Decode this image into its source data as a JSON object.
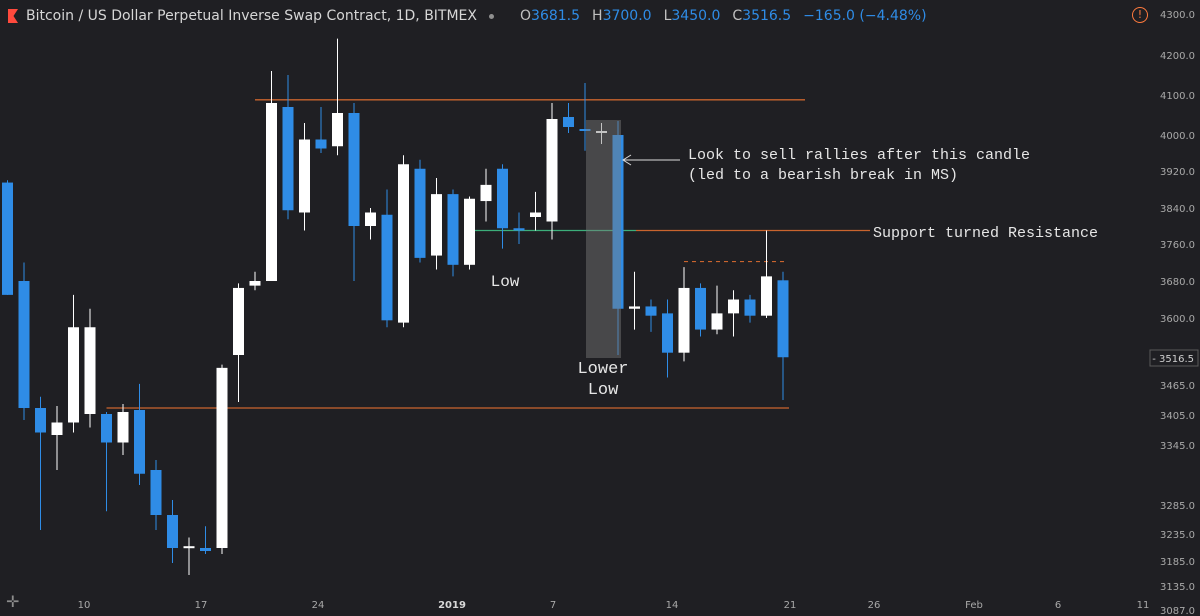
{
  "header": {
    "title": "Bitcoin / US Dollar Perpetual Inverse Swap Contract, 1D, BITMEX",
    "ohlc": [
      {
        "k": "O",
        "v": "3681.5"
      },
      {
        "k": "H",
        "v": "3700.0"
      },
      {
        "k": "L",
        "v": "3450.0"
      },
      {
        "k": "C",
        "v": "3516.5"
      },
      {
        "k": "",
        "v": "−165.0 (−4.48%)"
      }
    ]
  },
  "icons": {
    "logo": "flag-icon",
    "warning": "alert-icon",
    "crosshair": "crosshair-icon"
  },
  "colors": {
    "up": "#ffffff",
    "down": "#2f8ce6",
    "level": "#c9642e",
    "support": "#3cae7a",
    "background": "#1f1f23"
  },
  "chart_data": {
    "type": "candlestick",
    "symbol": "XBTUSD",
    "interval": "1D",
    "ylim": [
      3060,
      4310
    ],
    "y_ticks": [
      "4300.0",
      "4200.0",
      "4100.0",
      "4000.0",
      "3920.0",
      "3840.0",
      "3760.0",
      "3680.0",
      "3600.0",
      "3465.0",
      "3405.0",
      "3345.0",
      "3285.0",
      "3235.0",
      "3185.0",
      "3135.0",
      "3087.0"
    ],
    "x_ticks": [
      "10",
      "17",
      "24",
      "2019",
      "7",
      "14",
      "21",
      "26",
      "Feb",
      "6",
      "11"
    ],
    "last_price": "3516.5",
    "candles": [
      {
        "o": 3895,
        "h": 3900,
        "l": 3650,
        "c": 3650
      },
      {
        "o": 3680,
        "h": 3720,
        "l": 3400,
        "c": 3430
      },
      {
        "o": 3430,
        "h": 3455,
        "l": 3220,
        "c": 3375
      },
      {
        "o": 3370,
        "h": 3435,
        "l": 3300,
        "c": 3395
      },
      {
        "o": 3395,
        "h": 3650,
        "l": 3375,
        "c": 3580
      },
      {
        "o": 3415,
        "h": 3620,
        "l": 3385,
        "c": 3580
      },
      {
        "o": 3415,
        "h": 3420,
        "l": 3245,
        "c": 3355
      },
      {
        "o": 3355,
        "h": 3440,
        "l": 3330,
        "c": 3420
      },
      {
        "o": 3425,
        "h": 3475,
        "l": 3280,
        "c": 3295
      },
      {
        "o": 3300,
        "h": 3320,
        "l": 3220,
        "c": 3240
      },
      {
        "o": 3240,
        "h": 3260,
        "l": 3170,
        "c": 3195
      },
      {
        "o": 3195,
        "h": 3210,
        "l": 3150,
        "c": 3198
      },
      {
        "o": 3195,
        "h": 3225,
        "l": 3185,
        "c": 3190
      },
      {
        "o": 3195,
        "h": 3505,
        "l": 3185,
        "c": 3500
      },
      {
        "o": 3520,
        "h": 3675,
        "l": 3445,
        "c": 3665
      },
      {
        "o": 3670,
        "h": 3700,
        "l": 3660,
        "c": 3680
      },
      {
        "o": 3680,
        "h": 4160,
        "l": 3680,
        "c": 4080
      },
      {
        "o": 4070,
        "h": 4150,
        "l": 3815,
        "c": 3835
      },
      {
        "o": 3830,
        "h": 4030,
        "l": 3790,
        "c": 3990
      },
      {
        "o": 3990,
        "h": 4070,
        "l": 3960,
        "c": 3970
      },
      {
        "o": 3975,
        "h": 4240,
        "l": 3955,
        "c": 4055
      },
      {
        "o": 4055,
        "h": 4080,
        "l": 3680,
        "c": 3800
      },
      {
        "o": 3800,
        "h": 3840,
        "l": 3770,
        "c": 3830
      },
      {
        "o": 3825,
        "h": 3880,
        "l": 3580,
        "c": 3595
      },
      {
        "o": 3590,
        "h": 3955,
        "l": 3580,
        "c": 3935
      },
      {
        "o": 3925,
        "h": 3945,
        "l": 3720,
        "c": 3730
      },
      {
        "o": 3735,
        "h": 3905,
        "l": 3705,
        "c": 3870
      },
      {
        "o": 3870,
        "h": 3880,
        "l": 3690,
        "c": 3715
      },
      {
        "o": 3715,
        "h": 3865,
        "l": 3705,
        "c": 3860
      },
      {
        "o": 3855,
        "h": 3925,
        "l": 3810,
        "c": 3890
      },
      {
        "o": 3925,
        "h": 3935,
        "l": 3750,
        "c": 3795
      },
      {
        "o": 3795,
        "h": 3830,
        "l": 3760,
        "c": 3790
      },
      {
        "o": 3820,
        "h": 3875,
        "l": 3790,
        "c": 3830
      },
      {
        "o": 3810,
        "h": 4080,
        "l": 3770,
        "c": 4040
      },
      {
        "o": 4045,
        "h": 4080,
        "l": 4005,
        "c": 4020
      },
      {
        "o": 4015,
        "h": 4130,
        "l": 3965,
        "c": 4010
      },
      {
        "o": 4005,
        "h": 4030,
        "l": 3980,
        "c": 4010
      },
      {
        "o": 4000,
        "h": 4035,
        "l": 3520,
        "c": 3620
      },
      {
        "o": 3620,
        "h": 3700,
        "l": 3575,
        "c": 3625
      },
      {
        "o": 3625,
        "h": 3640,
        "l": 3570,
        "c": 3605
      },
      {
        "o": 3610,
        "h": 3640,
        "l": 3485,
        "c": 3525
      },
      {
        "o": 3525,
        "h": 3710,
        "l": 3510,
        "c": 3665
      },
      {
        "o": 3665,
        "h": 3675,
        "l": 3560,
        "c": 3575
      },
      {
        "o": 3575,
        "h": 3670,
        "l": 3565,
        "c": 3610
      },
      {
        "o": 3610,
        "h": 3660,
        "l": 3560,
        "c": 3640
      },
      {
        "o": 3640,
        "h": 3650,
        "l": 3590,
        "c": 3605
      },
      {
        "o": 3605,
        "h": 3790,
        "l": 3600,
        "c": 3690
      },
      {
        "o": 3681.5,
        "h": 3700,
        "l": 3450,
        "c": 3516.5
      }
    ],
    "levels": [
      {
        "price": 4088
      },
      {
        "price": 3430
      },
      {
        "price": 3790
      },
      {
        "price": 3722
      }
    ],
    "annotations": [
      {
        "text": "Look to sell rallies after this candle"
      },
      {
        "text": "(led to a bearish break in MS)"
      },
      {
        "text": "Support turned Resistance"
      },
      {
        "text": "Low"
      },
      {
        "text": "Lower"
      },
      {
        "text": "Low"
      }
    ]
  }
}
